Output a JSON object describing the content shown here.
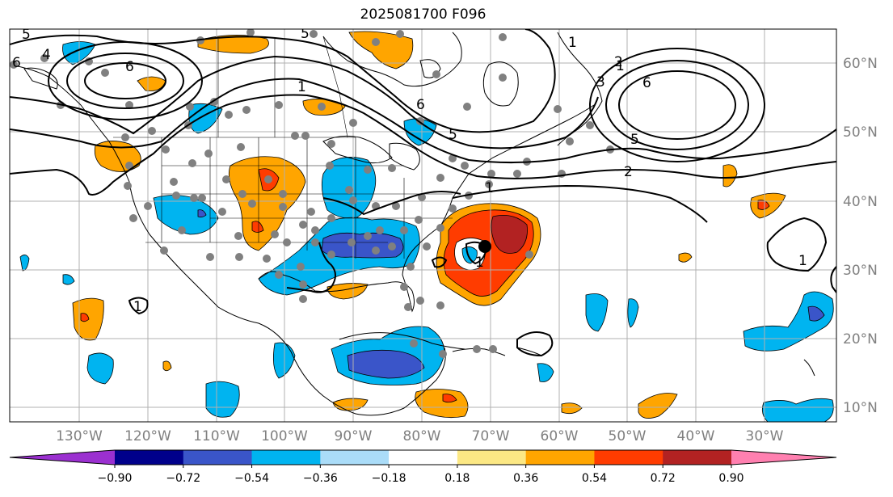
{
  "title": "2025081700 F096",
  "lon_labels": [
    "130°W",
    "120°W",
    "110°W",
    "100°W",
    "90°W",
    "80°W",
    "70°W",
    "60°W",
    "50°W",
    "40°W",
    "30°W"
  ],
  "lat_labels": [
    "60°N",
    "50°N",
    "40°N",
    "30°N",
    "20°N",
    "10°N"
  ],
  "colorbar": {
    "ticks": [
      "−0.90",
      "−0.72",
      "−0.54",
      "−0.36",
      "−0.18",
      "0.18",
      "0.36",
      "0.54",
      "0.72",
      "0.90"
    ],
    "colors": [
      "#9b30d0",
      "#00008b",
      "#3a55c9",
      "#00b4f0",
      "#aadcf8",
      "#ffffff",
      "#fce884",
      "#ffa500",
      "#ff3c00",
      "#b22222",
      "#ff80b0"
    ]
  },
  "contour_labels": [
    "5",
    "4",
    "6",
    "6",
    "1",
    "6",
    "5",
    "5",
    "1",
    "1",
    "2",
    "3",
    "6",
    "5",
    "2",
    "1",
    "1",
    "1",
    "1"
  ],
  "colors": {
    "grid": "#b0b0b0",
    "station_dot": "#808080",
    "land_line": "#000000"
  }
}
